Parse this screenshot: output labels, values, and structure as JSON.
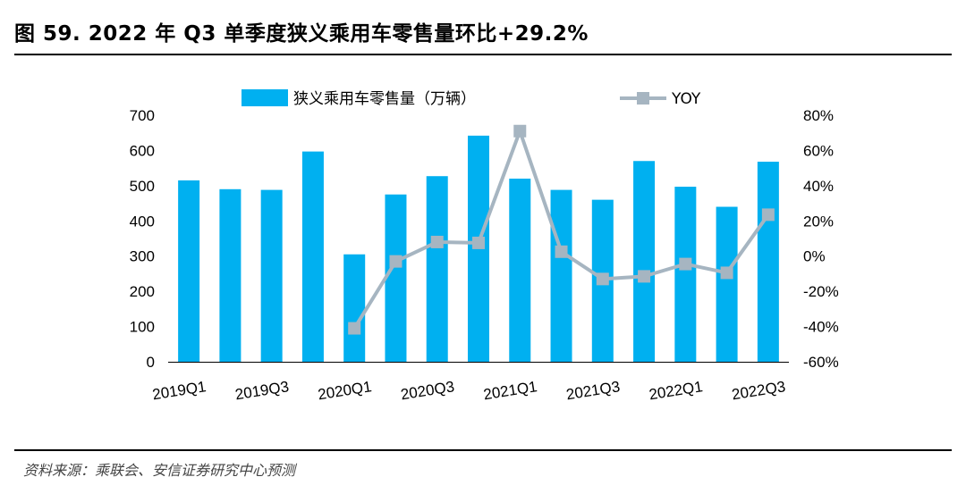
{
  "title": "图 59. 2022 年 Q3 单季度狭义乘用车零售量环比+29.2%",
  "source": "资料来源：乘联会、安信证券研究中心预测",
  "colors": {
    "bar": "#00b0f0",
    "line": "#a6b5c1",
    "marker": "#a6b5c1"
  },
  "chart_data": {
    "type": "bar+line",
    "categories": [
      "2019Q1",
      "2019Q2",
      "2019Q3",
      "2019Q4",
      "2020Q1",
      "2020Q2",
      "2020Q3",
      "2020Q4",
      "2021Q1",
      "2021Q2",
      "2021Q3",
      "2021Q4",
      "2022Q1",
      "2022Q2",
      "2022Q3"
    ],
    "x_tick_labels": [
      "2019Q1",
      "2019Q3",
      "2020Q1",
      "2020Q3",
      "2021Q1",
      "2021Q3",
      "2022Q1",
      "2022Q3"
    ],
    "series": [
      {
        "name": "狭义乘用车零售量（万辆）",
        "type": "bar",
        "axis": "left",
        "values": [
          515,
          490,
          488,
          597,
          305,
          475,
          527,
          642,
          520,
          488,
          460,
          570,
          497,
          440,
          568
        ]
      },
      {
        "name": "YOY",
        "type": "line",
        "axis": "right",
        "values": [
          null,
          null,
          null,
          null,
          -41,
          -3,
          8,
          7.5,
          71,
          2.5,
          -13,
          -11.5,
          -4.5,
          -9.5,
          23.5
        ]
      }
    ],
    "left_axis": {
      "ylim": [
        0,
        700
      ],
      "ticks": [
        "0",
        "100",
        "200",
        "300",
        "400",
        "500",
        "600",
        "700"
      ]
    },
    "right_axis": {
      "ylim": [
        -60,
        80
      ],
      "ticks": [
        "-60%",
        "-40%",
        "-20%",
        "0%",
        "20%",
        "40%",
        "60%",
        "80%"
      ]
    },
    "legend": {
      "bar_label": "狭义乘用车零售量（万辆）",
      "line_label": "YOY",
      "position": "top"
    }
  }
}
